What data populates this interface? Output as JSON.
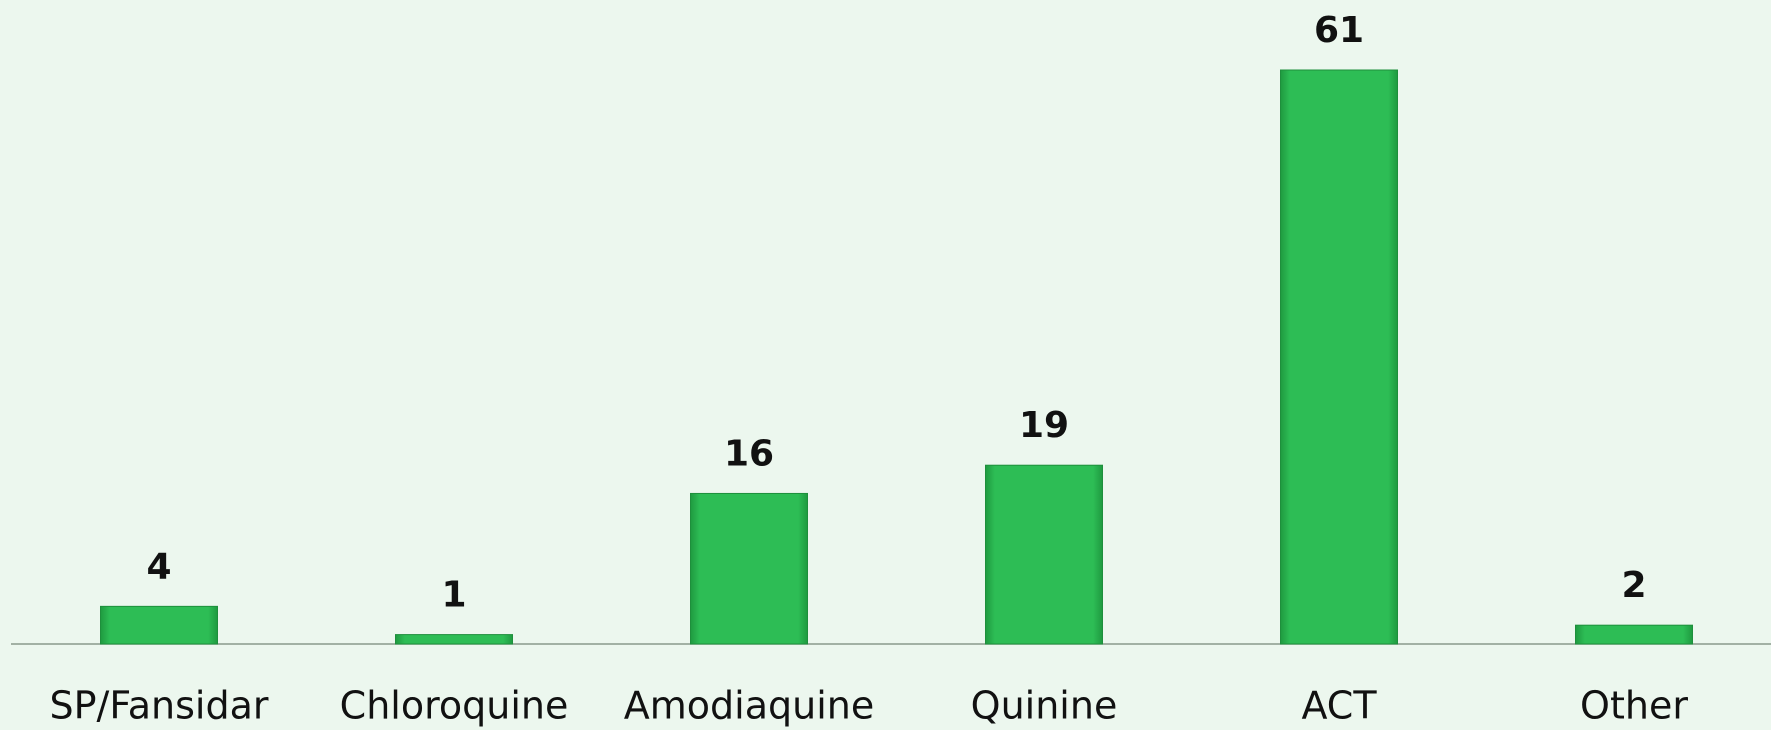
{
  "chart_data": {
    "type": "bar",
    "categories": [
      "SP/Fansidar",
      "Chloroquine",
      "Amodiaquine",
      "Quinine",
      "ACT",
      "Other"
    ],
    "values": [
      4,
      1,
      16,
      19,
      61,
      2
    ],
    "color": "#2dbd55"
  }
}
